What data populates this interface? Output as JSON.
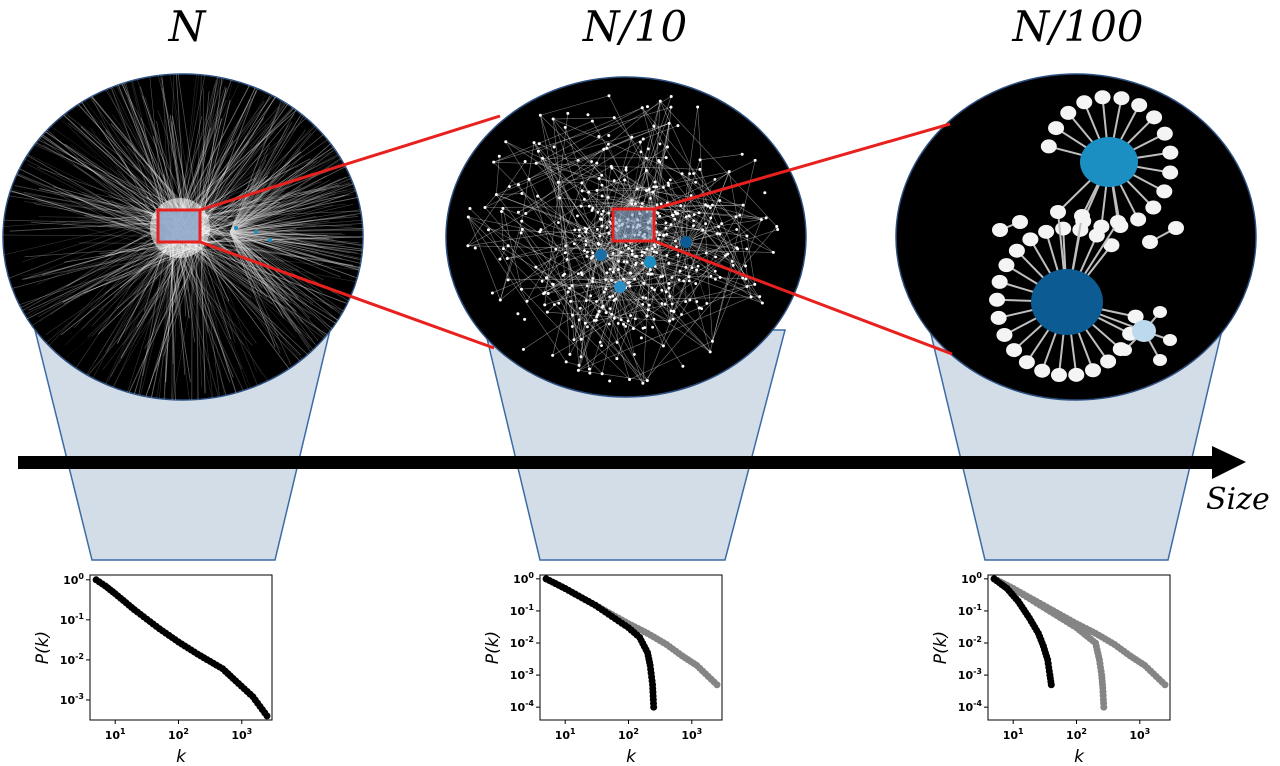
{
  "colors": {
    "funnel_fill": "#d3dde8",
    "funnel_stroke": "#3b6ba5",
    "zoom_lines": "#e8201e",
    "network_bg": "#000000",
    "node_white": "#f4f4f4",
    "hub_blue_dark": "#0d5b93",
    "hub_blue_mid": "#1b8ec2",
    "hub_blue_light": "#bcd9ee",
    "series_black": "#000000",
    "series_grey": "#858585"
  },
  "panels": [
    {
      "title": "N"
    },
    {
      "title": "N/10"
    },
    {
      "title": "N/100"
    }
  ],
  "axis": {
    "label": "Size"
  },
  "plots": {
    "ylabel": "P(k)",
    "xlabel": "k",
    "y_tick_labels": [
      "10^0",
      "10^-1",
      "10^-2",
      "10^-3",
      "10^-4"
    ],
    "x_tick_labels": [
      "10^1",
      "10^2",
      "10^3"
    ]
  },
  "chart_data": [
    {
      "type": "scatter",
      "log_x": true,
      "log_y": true,
      "xlabel": "k",
      "ylabel": "P(k)",
      "xlim": [
        4,
        3000
      ],
      "ylim": [
        0.0003,
        1.3
      ],
      "series": [
        {
          "color": "black",
          "x": [
            5,
            7,
            10,
            20,
            50,
            100,
            200,
            500,
            800,
            1500,
            2500
          ],
          "y": [
            1.0,
            0.7,
            0.45,
            0.18,
            0.06,
            0.028,
            0.014,
            0.006,
            0.003,
            0.0012,
            0.0004
          ]
        }
      ]
    },
    {
      "type": "scatter",
      "log_x": true,
      "log_y": true,
      "xlabel": "k",
      "ylabel": "P(k)",
      "xlim": [
        4,
        3000
      ],
      "ylim": [
        4e-05,
        1.3
      ],
      "series": [
        {
          "color": "grey",
          "x": [
            5,
            10,
            30,
            100,
            200,
            400,
            700,
            1200,
            2500
          ],
          "y": [
            1.0,
            0.5,
            0.15,
            0.04,
            0.02,
            0.009,
            0.004,
            0.002,
            0.0005
          ]
        },
        {
          "color": "black",
          "x": [
            5,
            10,
            30,
            100,
            150,
            200,
            220,
            240,
            250
          ],
          "y": [
            1.0,
            0.5,
            0.15,
            0.03,
            0.015,
            0.005,
            0.002,
            0.0005,
            0.0001
          ]
        }
      ]
    },
    {
      "type": "scatter",
      "log_x": true,
      "log_y": true,
      "xlabel": "k",
      "ylabel": "P(k)",
      "xlim": [
        4,
        3000
      ],
      "ylim": [
        4e-05,
        1.3
      ],
      "series": [
        {
          "color": "grey",
          "x": [
            5,
            10,
            30,
            100,
            200,
            400,
            700,
            1200,
            2500
          ],
          "y": [
            1.0,
            0.5,
            0.15,
            0.04,
            0.02,
            0.009,
            0.004,
            0.002,
            0.0005
          ]
        },
        {
          "color": "grey",
          "x": [
            5,
            10,
            30,
            100,
            200,
            230,
            250,
            260,
            270
          ],
          "y": [
            1.0,
            0.5,
            0.13,
            0.03,
            0.01,
            0.003,
            0.001,
            0.0004,
            0.0001
          ]
        },
        {
          "color": "black",
          "x": [
            5,
            8,
            12,
            18,
            25,
            30,
            35,
            38,
            40
          ],
          "y": [
            1.0,
            0.5,
            0.2,
            0.06,
            0.02,
            0.008,
            0.003,
            0.001,
            0.0005
          ]
        }
      ]
    }
  ]
}
